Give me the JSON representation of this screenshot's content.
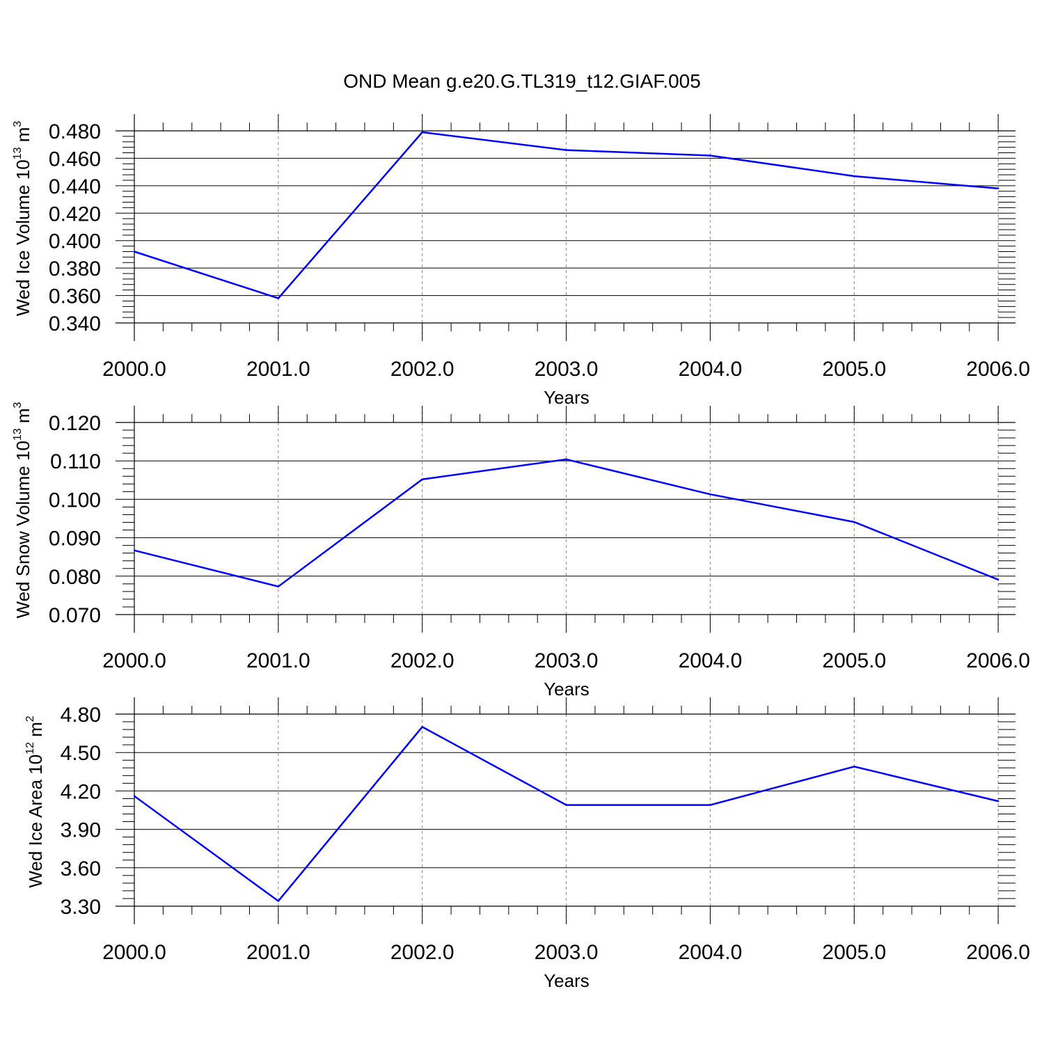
{
  "title": "OND Mean g.e20.G.TL319_t12.GIAF.005",
  "colors": {
    "series": "#0000ff",
    "axis": "#000000",
    "grid": "#888888"
  },
  "chart_data": [
    {
      "type": "line",
      "xlabel": "Years",
      "ylabel": {
        "prefix": "Wed Ice Volume 10",
        "exponent": "13",
        "unit": " m",
        "unit_exponent": "3"
      },
      "x": [
        2000,
        2001,
        2002,
        2003,
        2004,
        2005,
        2006
      ],
      "y": [
        0.392,
        0.358,
        0.479,
        0.466,
        0.462,
        0.447,
        0.438
      ],
      "xlim": [
        2000,
        2006.12
      ],
      "ylim": [
        0.34,
        0.48
      ],
      "xticks": [
        2000,
        2001,
        2002,
        2003,
        2004,
        2005,
        2006
      ],
      "xtick_labels": [
        "2000.0",
        "2001.0",
        "2002.0",
        "2003.0",
        "2004.0",
        "2005.0",
        "2006.0"
      ],
      "yticks": [
        0.34,
        0.36,
        0.38,
        0.4,
        0.42,
        0.44,
        0.46,
        0.48
      ],
      "ytick_labels": [
        "0.340",
        "0.360",
        "0.380",
        "0.400",
        "0.420",
        "0.440",
        "0.460",
        "0.480"
      ],
      "grid": "vertical dashed"
    },
    {
      "type": "line",
      "xlabel": "Years",
      "ylabel": {
        "prefix": "Wed Snow Volume 10",
        "exponent": "13",
        "unit": " m",
        "unit_exponent": "3"
      },
      "x": [
        2000,
        2001,
        2002,
        2003,
        2004,
        2005,
        2006
      ],
      "y": [
        0.0867,
        0.0773,
        0.1052,
        0.1104,
        0.1013,
        0.0941,
        0.0791
      ],
      "xlim": [
        2000,
        2006.12
      ],
      "ylim": [
        0.07,
        0.12
      ],
      "xticks": [
        2000,
        2001,
        2002,
        2003,
        2004,
        2005,
        2006
      ],
      "xtick_labels": [
        "2000.0",
        "2001.0",
        "2002.0",
        "2003.0",
        "2004.0",
        "2005.0",
        "2006.0"
      ],
      "yticks": [
        0.07,
        0.08,
        0.09,
        0.1,
        0.11,
        0.12
      ],
      "ytick_labels": [
        "0.070",
        "0.080",
        "0.090",
        "0.100",
        "0.110",
        "0.120"
      ],
      "grid": "vertical dashed"
    },
    {
      "type": "line",
      "xlabel": "Years",
      "ylabel": {
        "prefix": "Wed Ice Area 10",
        "exponent": "12",
        "unit": " m",
        "unit_exponent": "2"
      },
      "x": [
        2000,
        2001,
        2002,
        2003,
        2004,
        2005,
        2006
      ],
      "y": [
        4.16,
        3.34,
        4.7,
        4.09,
        4.09,
        4.39,
        4.12
      ],
      "xlim": [
        2000,
        2006.12
      ],
      "ylim": [
        3.3,
        4.8
      ],
      "xticks": [
        2000,
        2001,
        2002,
        2003,
        2004,
        2005,
        2006
      ],
      "xtick_labels": [
        "2000.0",
        "2001.0",
        "2002.0",
        "2003.0",
        "2004.0",
        "2005.0",
        "2006.0"
      ],
      "yticks": [
        3.3,
        3.6,
        3.9,
        4.2,
        4.5,
        4.8
      ],
      "ytick_labels": [
        "3.30",
        "3.60",
        "3.90",
        "4.20",
        "4.50",
        "4.80"
      ],
      "grid": "vertical dashed"
    }
  ]
}
